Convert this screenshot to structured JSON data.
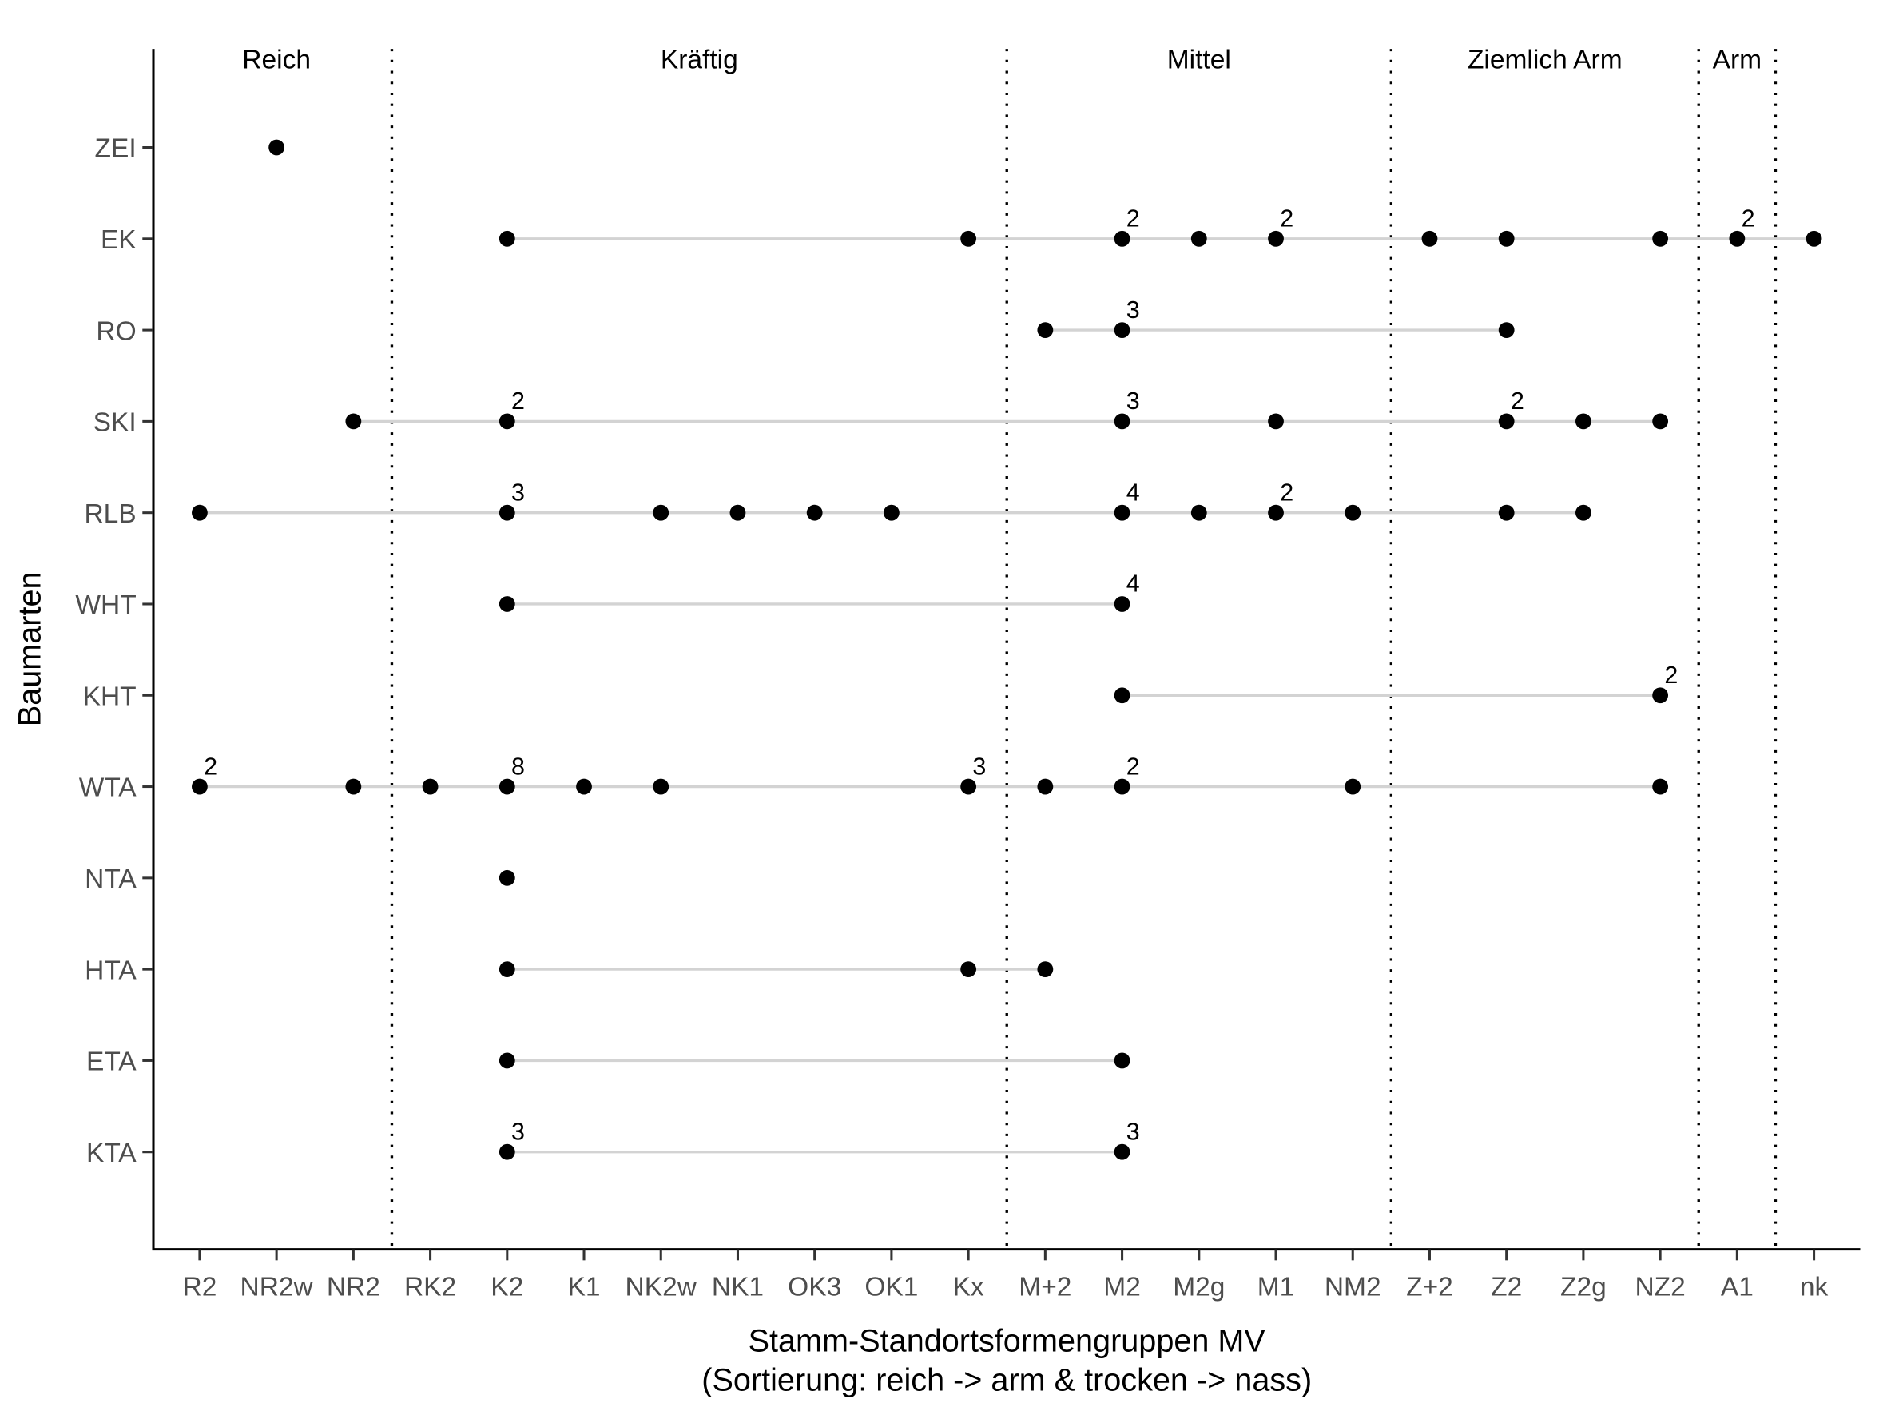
{
  "chart_data": {
    "type": "scatter",
    "subtype": "dot-range plot",
    "xlabel_line1": "Stamm-Standortsformengruppen MV",
    "xlabel_line2": "(Sortierung: reich -> arm & trocken -> nass)",
    "ylabel": "Baumarten",
    "categories": [
      "R2",
      "NR2w",
      "NR2",
      "RK2",
      "K2",
      "K1",
      "NK2w",
      "NK1",
      "OK3",
      "OK1",
      "Kx",
      "M+2",
      "M2",
      "M2g",
      "M1",
      "NM2",
      "Z+2",
      "Z2",
      "Z2g",
      "NZ2",
      "A1",
      "nk"
    ],
    "rows": [
      "ZEI",
      "EK",
      "RO",
      "SKI",
      "RLB",
      "WHT",
      "KHT",
      "WTA",
      "NTA",
      "HTA",
      "ETA",
      "KTA"
    ],
    "groups": [
      {
        "label": "Reich",
        "from": "R2",
        "to": "NR2"
      },
      {
        "label": "Kräftig",
        "from": "RK2",
        "to": "Kx"
      },
      {
        "label": "Mittel",
        "from": "M+2",
        "to": "NM2"
      },
      {
        "label": "Ziemlich Arm",
        "from": "Z+2",
        "to": "NZ2"
      },
      {
        "label": "Arm",
        "from": "A1",
        "to": "A1"
      }
    ],
    "group_dividers_after": [
      "NR2",
      "Kx",
      "NM2",
      "NZ2",
      "A1"
    ],
    "series": [
      {
        "name": "ZEI",
        "points": [
          {
            "x": "NR2w",
            "n": 1
          }
        ]
      },
      {
        "name": "EK",
        "points": [
          {
            "x": "K2",
            "n": 1
          },
          {
            "x": "Kx",
            "n": 1
          },
          {
            "x": "M2",
            "n": 2
          },
          {
            "x": "M2g",
            "n": 1
          },
          {
            "x": "M1",
            "n": 2
          },
          {
            "x": "Z+2",
            "n": 1
          },
          {
            "x": "Z2",
            "n": 1
          },
          {
            "x": "NZ2",
            "n": 1
          },
          {
            "x": "A1",
            "n": 2
          },
          {
            "x": "nk",
            "n": 1
          }
        ]
      },
      {
        "name": "RO",
        "points": [
          {
            "x": "M+2",
            "n": 1
          },
          {
            "x": "M2",
            "n": 3
          },
          {
            "x": "Z2",
            "n": 1
          }
        ]
      },
      {
        "name": "SKI",
        "points": [
          {
            "x": "NR2",
            "n": 1
          },
          {
            "x": "K2",
            "n": 2
          },
          {
            "x": "M2",
            "n": 3
          },
          {
            "x": "M1",
            "n": 1
          },
          {
            "x": "Z2",
            "n": 2
          },
          {
            "x": "Z2g",
            "n": 1
          },
          {
            "x": "NZ2",
            "n": 1
          }
        ]
      },
      {
        "name": "RLB",
        "points": [
          {
            "x": "R2",
            "n": 1
          },
          {
            "x": "K2",
            "n": 3
          },
          {
            "x": "NK2w",
            "n": 1
          },
          {
            "x": "NK1",
            "n": 1
          },
          {
            "x": "OK3",
            "n": 1
          },
          {
            "x": "OK1",
            "n": 1
          },
          {
            "x": "M2",
            "n": 4
          },
          {
            "x": "M2g",
            "n": 1
          },
          {
            "x": "M1",
            "n": 2
          },
          {
            "x": "NM2",
            "n": 1
          },
          {
            "x": "Z2",
            "n": 1
          },
          {
            "x": "Z2g",
            "n": 1
          }
        ]
      },
      {
        "name": "WHT",
        "points": [
          {
            "x": "K2",
            "n": 1
          },
          {
            "x": "M2",
            "n": 4
          }
        ]
      },
      {
        "name": "KHT",
        "points": [
          {
            "x": "M2",
            "n": 1
          },
          {
            "x": "NZ2",
            "n": 2
          }
        ]
      },
      {
        "name": "WTA",
        "points": [
          {
            "x": "R2",
            "n": 2
          },
          {
            "x": "NR2",
            "n": 1
          },
          {
            "x": "RK2",
            "n": 1
          },
          {
            "x": "K2",
            "n": 8
          },
          {
            "x": "K1",
            "n": 1
          },
          {
            "x": "NK2w",
            "n": 1
          },
          {
            "x": "Kx",
            "n": 3
          },
          {
            "x": "M+2",
            "n": 1
          },
          {
            "x": "M2",
            "n": 2
          },
          {
            "x": "NM2",
            "n": 1
          },
          {
            "x": "NZ2",
            "n": 1
          }
        ]
      },
      {
        "name": "NTA",
        "points": [
          {
            "x": "K2",
            "n": 1
          }
        ]
      },
      {
        "name": "HTA",
        "points": [
          {
            "x": "K2",
            "n": 1
          },
          {
            "x": "Kx",
            "n": 1
          },
          {
            "x": "M+2",
            "n": 1
          }
        ]
      },
      {
        "name": "ETA",
        "points": [
          {
            "x": "K2",
            "n": 1
          },
          {
            "x": "M2",
            "n": 1
          }
        ]
      },
      {
        "name": "KTA",
        "points": [
          {
            "x": "K2",
            "n": 3
          },
          {
            "x": "M2",
            "n": 3
          }
        ]
      }
    ],
    "count_labels_shown_when_n_gt": 1,
    "grid": false,
    "legend": "none",
    "colors": {
      "point": "#000000",
      "segment": "#d3d3d3",
      "divider": "#000000"
    }
  }
}
